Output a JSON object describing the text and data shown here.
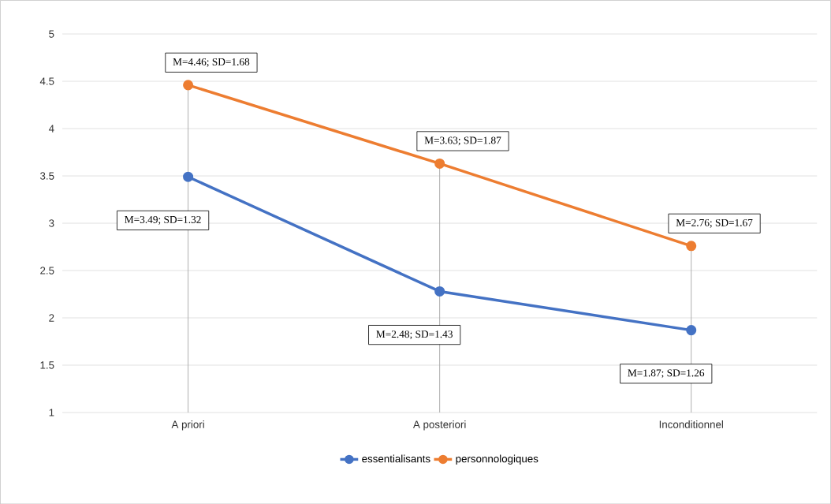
{
  "chart_data": {
    "type": "line",
    "categories": [
      "A priori",
      "A posteriori",
      "Inconditionnel"
    ],
    "series": [
      {
        "name": "essentialisants",
        "color": "#4472c4",
        "values": [
          3.49,
          2.28,
          1.87
        ]
      },
      {
        "name": "personnologiques",
        "color": "#ed7d31",
        "values": [
          4.46,
          3.63,
          2.76
        ],
        "errors": [
          [
            1,
            4.46
          ],
          [
            1,
            3.63
          ],
          [
            1,
            2.76
          ]
        ]
      }
    ],
    "ylim": [
      1,
      5
    ],
    "yticks": [
      1,
      1.5,
      2,
      2.5,
      3,
      3.5,
      4,
      4.5,
      5
    ],
    "grid": "y",
    "legend": "bottom",
    "marker": "circle",
    "line_style": "solid",
    "annotations": [
      "M=3.49; SD=1.32",
      "M=2.48; SD=1.43",
      "M=1.87; SD=1.26",
      "M=4.46; SD=1.68",
      "M=3.63; SD=1.87",
      "M=2.76; SD=1.67"
    ]
  }
}
